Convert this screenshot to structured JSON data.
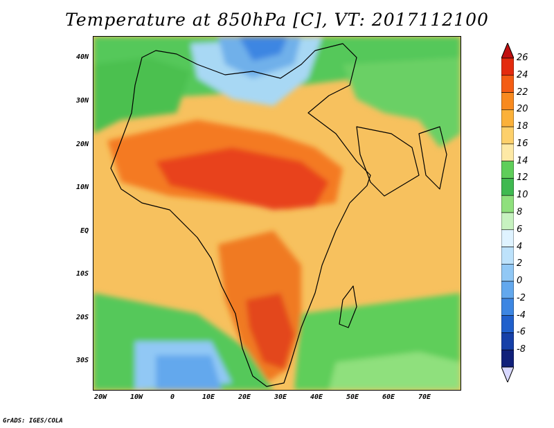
{
  "title": "Temperature at 850hPa [C], VT: 2017112100",
  "footer": "GrADS: IGES/COLA",
  "lat_labels": [
    "40N",
    "30N",
    "20N",
    "10N",
    "EQ",
    "10S",
    "20S",
    "30S"
  ],
  "lon_labels": [
    "20W",
    "10W",
    "0",
    "10E",
    "20E",
    "30E",
    "40E",
    "50E",
    "60E",
    "70E"
  ],
  "colorbar": {
    "labels": [
      "26",
      "24",
      "22",
      "20",
      "18",
      "16",
      "14",
      "12",
      "10",
      "8",
      "6",
      "4",
      "2",
      "0",
      "-2",
      "-4",
      "-6",
      "-8"
    ],
    "colors": [
      "#e32b0e",
      "#f45d14",
      "#f88a1f",
      "#fbb13a",
      "#fdd06b",
      "#fde9a6",
      "#5fce5a",
      "#3fb950",
      "#8fe07d",
      "#c7f2c0",
      "#dff3ff",
      "#bde2fb",
      "#91c8f5",
      "#63a8ed",
      "#3d86e2",
      "#2060cc",
      "#1640a8",
      "#10207a"
    ],
    "over_color": "#c01010",
    "under_color": "#d8d8ff"
  }
}
